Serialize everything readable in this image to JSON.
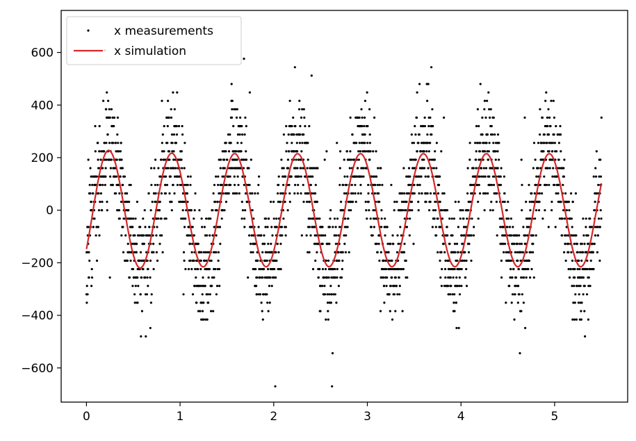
{
  "chart_data": {
    "type": "scatter",
    "title": "",
    "xlabel": "",
    "ylabel": "",
    "xlim": [
      -0.27,
      5.78
    ],
    "ylim": [
      -730,
      760
    ],
    "x_ticks": [
      0,
      1,
      2,
      3,
      4,
      5
    ],
    "x_tick_labels": [
      "0",
      "1",
      "2",
      "3",
      "4",
      "5"
    ],
    "y_ticks": [
      -600,
      -400,
      -200,
      0,
      200,
      400,
      600
    ],
    "y_tick_labels": [
      "−600",
      "−400",
      "−200",
      "0",
      "200",
      "400",
      "600"
    ],
    "grid": false,
    "legend_position": "upper-left",
    "series": [
      {
        "name": "x measurements",
        "kind": "scatter",
        "color": "#000000",
        "x_range": [
          0,
          5.5
        ],
        "n_points": 2750,
        "noise_model": "sinusoid plus noise, values quantized to steps of 32",
        "quantization_step": 32,
        "approx_value_range": [
          -670,
          700
        ]
      },
      {
        "name": "x simulation",
        "kind": "line",
        "color": "#d62728",
        "x_range": [
          0,
          5.5
        ],
        "amplitude": 215,
        "initial_peak": 240,
        "initial_value": -150,
        "period": 0.672,
        "phase_shift": 0.071,
        "end_value": 60
      }
    ]
  }
}
